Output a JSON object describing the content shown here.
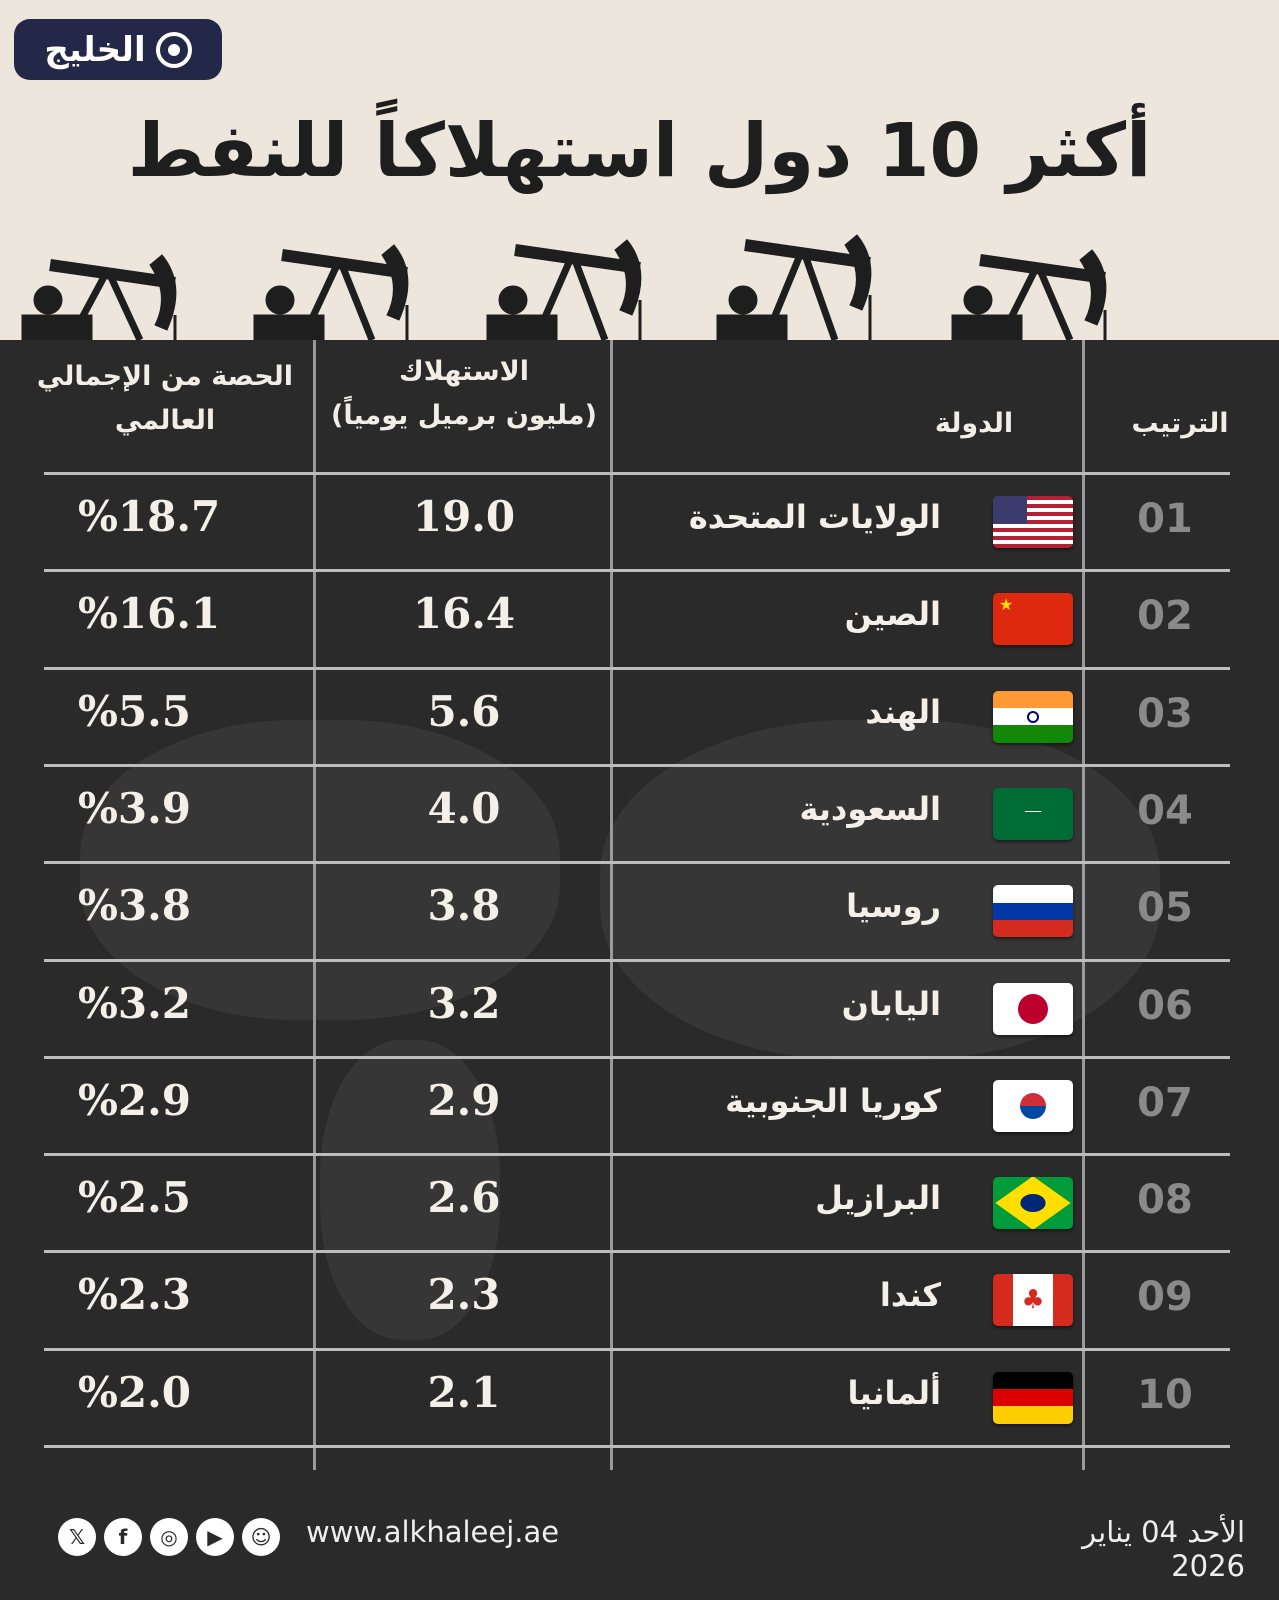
{
  "logo": {
    "text": "الخليج"
  },
  "title": "أكثر 10 دول استهلاكاً للنفط",
  "headers": {
    "share": "الحصة من الإجمالي العالمي",
    "consumption_line1": "الاستهلاك",
    "consumption_line2": "(مليون برميل يومياً)",
    "country": "الدولة",
    "rank": "الترتيب"
  },
  "rows": [
    {
      "rank": "01",
      "country": "الولايات المتحدة",
      "flag": "us-flag",
      "consumption": "19.0",
      "share": "%18.7"
    },
    {
      "rank": "02",
      "country": "الصين",
      "flag": "china-flag",
      "consumption": "16.4",
      "share": "%16.1"
    },
    {
      "rank": "03",
      "country": "الهند",
      "flag": "india-flag",
      "consumption": "5.6",
      "share": "%5.5"
    },
    {
      "rank": "04",
      "country": "السعودية",
      "flag": "saudi-flag",
      "consumption": "4.0",
      "share": "%3.9"
    },
    {
      "rank": "05",
      "country": "روسيا",
      "flag": "russia-flag",
      "consumption": "3.8",
      "share": "%3.8"
    },
    {
      "rank": "06",
      "country": "اليابان",
      "flag": "japan-flag",
      "consumption": "3.2",
      "share": "%3.2"
    },
    {
      "rank": "07",
      "country": "كوريا الجنوبية",
      "flag": "korea-flag",
      "consumption": "2.9",
      "share": "%2.9"
    },
    {
      "rank": "08",
      "country": "البرازيل",
      "flag": "brazil-flag",
      "consumption": "2.6",
      "share": "%2.5"
    },
    {
      "rank": "09",
      "country": "كندا",
      "flag": "canada-flag",
      "consumption": "2.3",
      "share": "%2.3"
    },
    {
      "rank": "10",
      "country": "ألمانيا",
      "flag": "germany-flag",
      "consumption": "2.1",
      "share": "%2.0"
    }
  ],
  "footer": {
    "website": "www.alkhaleej.ae",
    "date": "الأحد 04 يناير 2026",
    "social": [
      "x-icon",
      "facebook-icon",
      "instagram-icon",
      "youtube-icon",
      "snapchat-icon"
    ]
  },
  "colors": {
    "background": "#2a2a2a",
    "header_bg": "#ede6dd",
    "logo_bg": "#232848"
  }
}
